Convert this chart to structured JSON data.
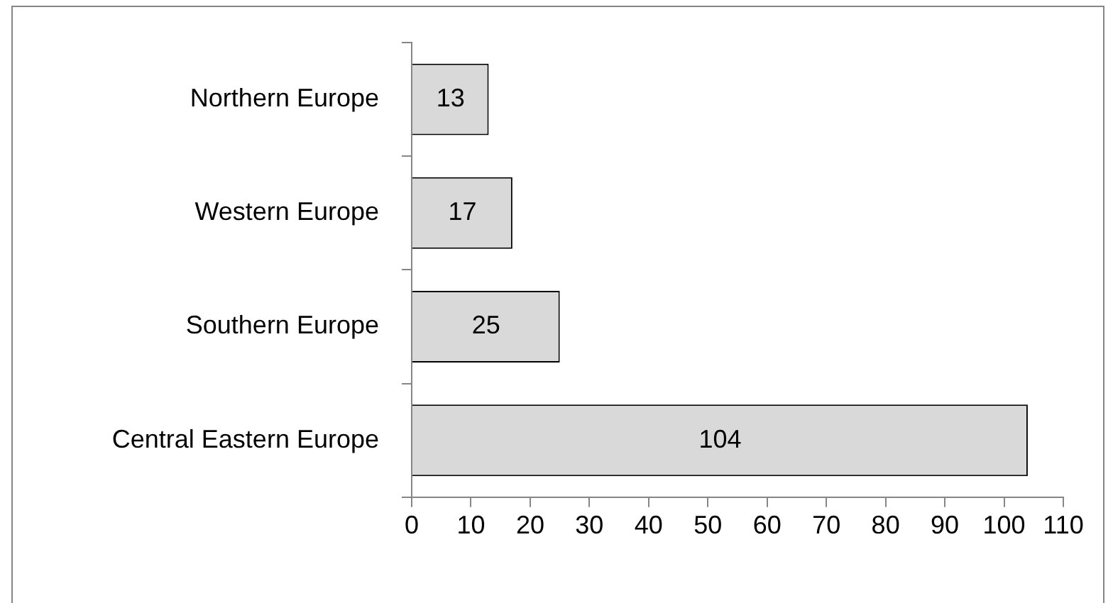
{
  "chart_data": {
    "type": "bar",
    "orientation": "horizontal",
    "categories": [
      "Northern Europe",
      "Western Europe",
      "Southern Europe",
      "Central Eastern Europe"
    ],
    "values": [
      13,
      17,
      25,
      104
    ],
    "color": "#d9d9d9",
    "xlim": [
      0,
      110
    ],
    "xticks": [
      0,
      10,
      20,
      30,
      40,
      50,
      60,
      70,
      80,
      90,
      100,
      110
    ],
    "data_labels": true,
    "grid": false,
    "legend": false
  }
}
